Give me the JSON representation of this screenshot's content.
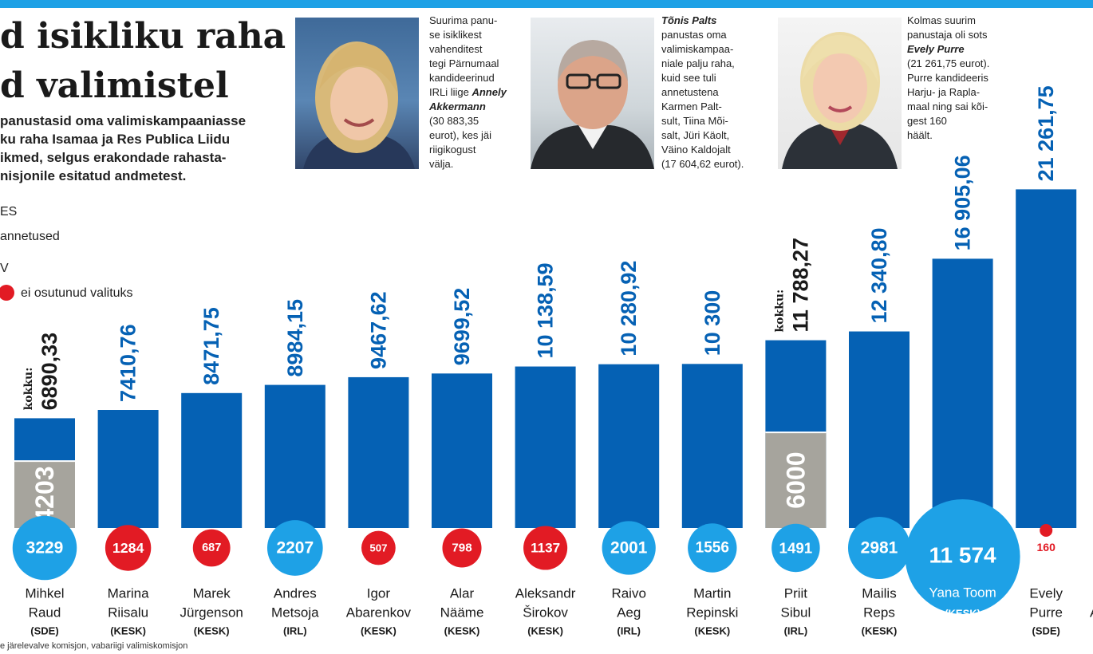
{
  "headline": {
    "line1": "d isikliku raha",
    "line2": "d valimistel"
  },
  "lede": [
    "panustasid oma valimiskampaaniasse",
    "ku raha Isamaa ja Res Publica Liidu",
    "ikmed, selgus erakondade rahasta-",
    "nisjonile esitatud andmetest."
  ],
  "legend": {
    "units": "ES",
    "donations": "annetused",
    "votes": "V",
    "not_elected": "ei osutunud valituks"
  },
  "callouts": [
    {
      "lines": [
        "Suurima panu-",
        "se isiklikest",
        "vahenditest",
        "tegi Pärnumaal",
        "kandideerinud"
      ],
      "name_prefix": "IRLi liige ",
      "name1": "Annely",
      "name2": "Akkermann",
      "after": [
        "(30 883,35",
        "eurot), kes jäi",
        "riigikogust",
        "välja."
      ]
    },
    {
      "name": "Tõnis Palts",
      "lines": [
        "panustas oma",
        "valimiskampaa-",
        "niale palju raha,",
        "kuid see tuli",
        "annetustena",
        "Karmen Palt-",
        "sult, Tiina Mõi-",
        "salt, Jüri Käolt,",
        "Väino Kaldojalt",
        "(17 604,62 eurot)."
      ]
    },
    {
      "lines": [
        "Kolmas suurim",
        "panustaja oli sots"
      ],
      "name": "Evely Purre",
      "after": [
        "(21 261,75 eurot).",
        "Purre kandideeris",
        "Harju- ja Rapla-",
        "maal ning sai kõi-",
        "gest 160",
        "häält."
      ]
    }
  ],
  "source": "e järelevalve komisjon, vabariigi valimiskomisjon",
  "chart_data": {
    "type": "bar",
    "value_label_prefix": "kokku:",
    "colors": {
      "own_money": "#0561b4",
      "donations": "#a6a49d",
      "value_text": "#0561b4",
      "total_text": "#1a1a1a",
      "elected": "#1ea1e6",
      "not_elected": "#e21b24"
    },
    "candidates": [
      {
        "first": "Mihkel",
        "last": "Raud",
        "party": "(SDE)",
        "total": 6890.33,
        "label": "6890,33",
        "donations": 4203,
        "donations_label": "4203",
        "votes": 3229,
        "votes_label": "3229",
        "elected": true,
        "show_total_prefix": true
      },
      {
        "first": "Marina",
        "last": "Riisalu",
        "party": "(KESK)",
        "total": 7410.76,
        "label": "7410,76",
        "donations": 0,
        "votes": 1284,
        "votes_label": "1284",
        "elected": false
      },
      {
        "first": "Marek",
        "last": "Jürgenson",
        "party": "(KESK)",
        "total": 8471.75,
        "label": "8471,75",
        "donations": 0,
        "votes": 687,
        "votes_label": "687",
        "elected": false
      },
      {
        "first": "Andres",
        "last": "Metsoja",
        "party": "(IRL)",
        "total": 8984.15,
        "label": "8984,15",
        "donations": 0,
        "votes": 2207,
        "votes_label": "2207",
        "elected": true
      },
      {
        "first": "Igor",
        "last": "Abarenkov",
        "party": "(KESK)",
        "total": 9467.62,
        "label": "9467,62",
        "donations": 0,
        "votes": 507,
        "votes_label": "507",
        "elected": false
      },
      {
        "first": "Alar",
        "last": "Nääme",
        "party": "(KESK)",
        "total": 9699.52,
        "label": "9699,52",
        "donations": 0,
        "votes": 798,
        "votes_label": "798",
        "elected": false
      },
      {
        "first": "Aleksandr",
        "last": "Širokov",
        "party": "(KESK)",
        "total": 10138.59,
        "label": "10 138,59",
        "donations": 0,
        "votes": 1137,
        "votes_label": "1137",
        "elected": false
      },
      {
        "first": "Raivo",
        "last": "Aeg",
        "party": "(IRL)",
        "total": 10280.92,
        "label": "10 280,92",
        "donations": 0,
        "votes": 2001,
        "votes_label": "2001",
        "elected": true
      },
      {
        "first": "Martin",
        "last": "Repinski",
        "party": "(KESK)",
        "total": 10300,
        "label": "10 300",
        "donations": 0,
        "votes": 1556,
        "votes_label": "1556",
        "elected": true
      },
      {
        "first": "Priit",
        "last": "Sibul",
        "party": "(IRL)",
        "total": 11788.27,
        "label": "11 788,27",
        "donations": 6000,
        "donations_label": "6000",
        "votes": 1491,
        "votes_label": "1491",
        "elected": true,
        "show_total_prefix": true
      },
      {
        "first": "Mailis",
        "last": "Reps",
        "party": "(KESK)",
        "total": 12340.8,
        "label": "12 340,80",
        "donations": 0,
        "votes": 2981,
        "votes_label": "2981",
        "elected": true
      },
      {
        "first": "Yana Toom",
        "last": "",
        "party": "(KESK)",
        "total": 16905.06,
        "label": "16 905,06",
        "donations": 0,
        "votes": 11574,
        "votes_label": "11 574",
        "elected": true,
        "label_inside": true
      },
      {
        "first": "Evely",
        "last": "Purre",
        "party": "(SDE)",
        "total": 21261.75,
        "label": "21 261,75",
        "donations": 0,
        "votes": 160,
        "votes_label": "160",
        "elected": false,
        "red_text": true
      }
    ],
    "partial_next_label": "A"
  }
}
